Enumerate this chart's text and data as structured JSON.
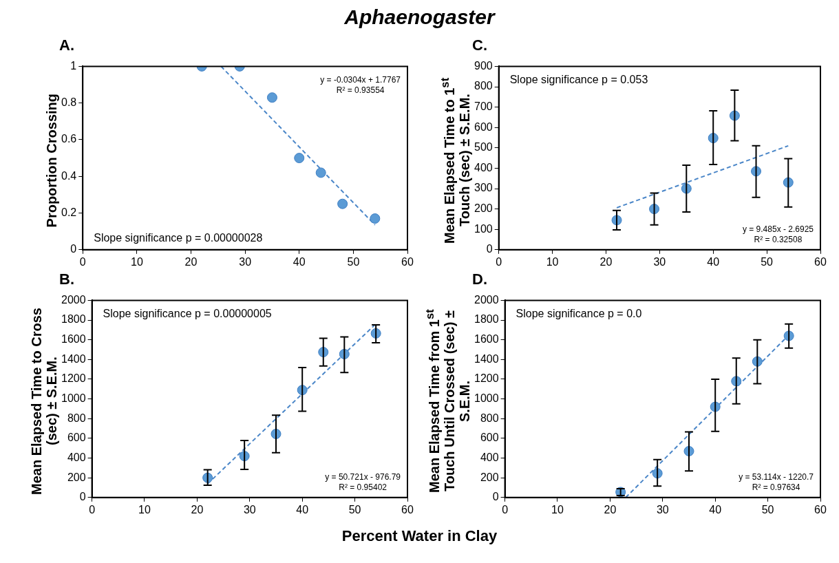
{
  "chart_data": [
    {
      "type": "scatter",
      "title": "Aphaenogaster",
      "subtitle": "A.",
      "ylabel": "Proportion Crossing",
      "xlim": [
        0,
        60
      ],
      "xticks": [
        0,
        10,
        20,
        30,
        40,
        50,
        60
      ],
      "ylim": [
        0,
        1
      ],
      "yticks": [
        0,
        0.2,
        0.4,
        0.6,
        0.8,
        1
      ],
      "grid": false,
      "legend": false,
      "marker": "circle",
      "series": [
        {
          "type": "scatter",
          "color": "#5b9bd5",
          "x": [
            22,
            29,
            35,
            40,
            44,
            48,
            54
          ],
          "values": [
            1,
            1,
            0.83,
            0.5,
            0.42,
            0.25,
            0.17
          ]
        },
        {
          "type": "line",
          "color": "#4a86c8",
          "line_style": "dashed",
          "marker": "none",
          "x": [
            25.55,
            54
          ],
          "values": [
            1,
            0.135
          ]
        }
      ],
      "annotations": [
        "Slope significance p = 0.00000028",
        "y = -0.0304x + 1.7767",
        "R² = 0.93554"
      ]
    },
    {
      "type": "scatter",
      "subtitle": "C.",
      "ylabel": "Mean Elapsed Time  to 1$^{st}$ Touch (sec) ± S.E.M.",
      "xlim": [
        0,
        60
      ],
      "xticks": [
        0,
        10,
        20,
        30,
        40,
        50,
        60
      ],
      "ylim": [
        0,
        900
      ],
      "yticks": [
        0,
        100,
        200,
        300,
        400,
        500,
        600,
        700,
        800,
        900
      ],
      "grid": false,
      "legend": false,
      "marker": "circle",
      "series": [
        {
          "type": "scatter",
          "color": "#5b9bd5",
          "x": [
            22,
            29,
            35,
            40,
            44,
            48,
            54
          ],
          "values": [
            145,
            200,
            300,
            548,
            658,
            385,
            330
          ],
          "errors": [
            [
              97,
              193
            ],
            [
              122,
              278
            ],
            [
              185,
              415
            ],
            [
              418,
              682
            ],
            [
              535,
              783
            ],
            [
              257,
              510
            ],
            [
              210,
              447
            ]
          ]
        },
        {
          "type": "line",
          "color": "#4a86c8",
          "line_style": "dashed",
          "marker": "none",
          "x": [
            22,
            54
          ],
          "values": [
            206,
            510
          ]
        }
      ],
      "annotations": [
        "Slope significance p = 0.053",
        "y = 9.485x - 2.6925",
        "R² = 0.32508"
      ]
    },
    {
      "type": "scatter",
      "subtitle": "B.",
      "xlabel": "Percent Water in Clay",
      "ylabel": "Mean Elapsed Time to Cross (sec) ± S.E.M.",
      "xlim": [
        0,
        60
      ],
      "xticks": [
        0,
        10,
        20,
        30,
        40,
        50,
        60
      ],
      "ylim": [
        0,
        2000
      ],
      "yticks": [
        0,
        200,
        400,
        600,
        800,
        1000,
        1200,
        1400,
        1600,
        1800,
        2000
      ],
      "grid": false,
      "legend": false,
      "marker": "circle",
      "series": [
        {
          "type": "scatter",
          "color": "#5b9bd5",
          "x": [
            22,
            29,
            35,
            40,
            44,
            48,
            54
          ],
          "values": [
            200,
            420,
            645,
            1090,
            1475,
            1455,
            1665
          ],
          "errors": [
            [
              125,
              282
            ],
            [
              285,
              578
            ],
            [
              455,
              835
            ],
            [
              875,
              1318
            ],
            [
              1335,
              1615
            ],
            [
              1268,
              1630
            ],
            [
              1570,
              1752
            ]
          ]
        },
        {
          "type": "line",
          "color": "#4a86c8",
          "line_style": "dashed",
          "marker": "none",
          "x": [
            22,
            54
          ],
          "values": [
            139,
            1762
          ]
        }
      ],
      "annotations": [
        "Slope significance p = 0.00000005",
        "y = 50.721x - 976.79",
        "R² = 0.95402"
      ]
    },
    {
      "type": "scatter",
      "subtitle": "D.",
      "ylabel": "Mean Elapsed Time from 1$^{st}$ Touch Until Crossed (sec) ± S.E.M.",
      "xlim": [
        0,
        60
      ],
      "xticks": [
        0,
        10,
        20,
        30,
        40,
        50,
        60
      ],
      "ylim": [
        0,
        2000
      ],
      "yticks": [
        0,
        200,
        400,
        600,
        800,
        1000,
        1200,
        1400,
        1600,
        1800,
        2000
      ],
      "grid": false,
      "legend": false,
      "marker": "circle",
      "series": [
        {
          "type": "scatter",
          "color": "#5b9bd5",
          "x": [
            22,
            29,
            35,
            40,
            44,
            48,
            54
          ],
          "values": [
            55,
            245,
            470,
            920,
            1180,
            1380,
            1640
          ],
          "errors": [
            [
              20,
              90
            ],
            [
              115,
              385
            ],
            [
              270,
              665
            ],
            [
              670,
              1200
            ],
            [
              950,
              1415
            ],
            [
              1155,
              1600
            ],
            [
              1515,
              1760
            ]
          ]
        },
        {
          "type": "line",
          "color": "#4a86c8",
          "line_style": "dashed",
          "marker": "none",
          "x": [
            22.98,
            54
          ],
          "values": [
            0,
            1648
          ]
        }
      ],
      "annotations": [
        "Slope significance p = 0.0",
        "y = 53.114x - 1220.7",
        "R² = 0.97634"
      ]
    }
  ]
}
